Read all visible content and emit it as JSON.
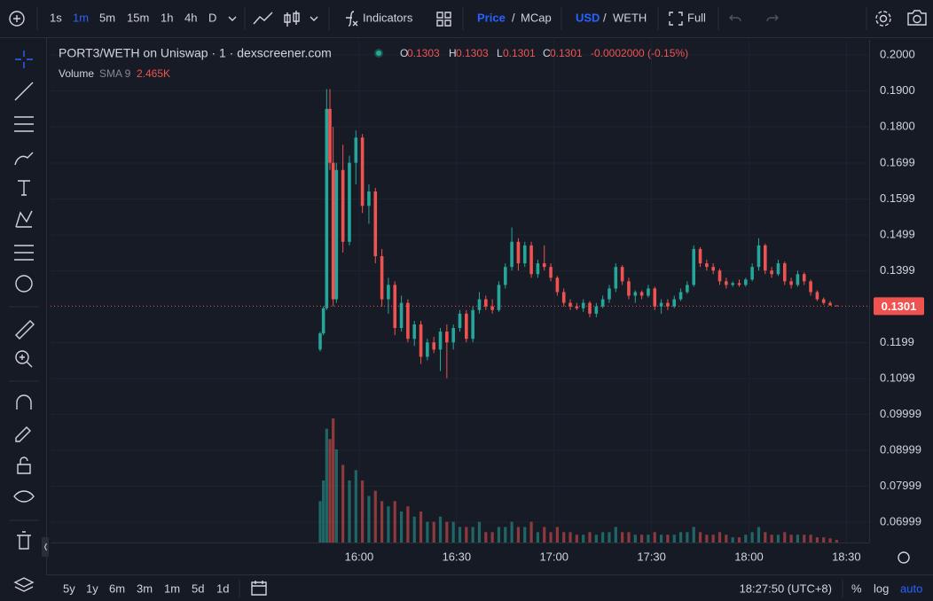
{
  "toolbar": {
    "intervals": [
      "1s",
      "1m",
      "5m",
      "15m",
      "1h",
      "4h",
      "D"
    ],
    "indicators": "Indicators",
    "price": "Price",
    "slash": "/",
    "mcap": "MCap",
    "usd": "USD",
    "weth": "WETH",
    "full": "Full"
  },
  "bottom_bar": {
    "ranges": [
      "5y",
      "1y",
      "6m",
      "3m",
      "1m",
      "5d",
      "1d"
    ],
    "clock": "18:27:50 (UTC+8)",
    "percent": "%",
    "log": "log",
    "auto": "auto"
  },
  "chart_data": {
    "type": "candlestick",
    "title": "PORT3/WETH on Uniswap · 1 · dexscreener.com",
    "ohlc_labels": [
      "O",
      "H",
      "L",
      "C"
    ],
    "change": "-0.0002000 (-0.15%)",
    "volume_label": "Volume",
    "volume_sma": "SMA 9",
    "volume_sma_value": "2.465K",
    "up_color": "#26a69a",
    "down_color": "#ef5350",
    "grid": true,
    "ylim": [
      0.0643,
      0.2042
    ],
    "yticks": [
      {
        "value": 0.2,
        "label": "0.2000"
      },
      {
        "value": 0.19,
        "label": "0.1900"
      },
      {
        "value": 0.18,
        "label": "0.1800"
      },
      0.1699,
      0.1599,
      0.1499,
      0.1399,
      0.1199,
      0.1099,
      0.09999,
      0.08999,
      0.07999,
      0.06999
    ],
    "xlim": [
      "14:25",
      "18:37"
    ],
    "xticks": [
      "16:00",
      "16:30",
      "17:00",
      "17:30",
      "18:00",
      "18:30"
    ],
    "x": [
      "15:48",
      "15:49",
      "15:50",
      "15:51",
      "15:52",
      "15:53",
      "15:55",
      "15:57",
      "15:59",
      "16:01",
      "16:03",
      "16:05",
      "16:07",
      "16:09",
      "16:11",
      "16:13",
      "16:15",
      "16:17",
      "16:19",
      "16:21",
      "16:23",
      "16:25",
      "16:27",
      "16:29",
      "16:31",
      "16:33",
      "16:35",
      "16:37",
      "16:39",
      "16:41",
      "16:43",
      "16:45",
      "16:47",
      "16:49",
      "16:51",
      "16:53",
      "16:55",
      "16:57",
      "16:59",
      "17:01",
      "17:03",
      "17:05",
      "17:07",
      "17:09",
      "17:11",
      "17:13",
      "17:15",
      "17:17",
      "17:19",
      "17:21",
      "17:23",
      "17:25",
      "17:27",
      "17:29",
      "17:31",
      "17:33",
      "17:35",
      "17:37",
      "17:39",
      "17:41",
      "17:43",
      "17:45",
      "17:47",
      "17:49",
      "17:51",
      "17:53",
      "17:55",
      "17:57",
      "17:59",
      "18:01",
      "18:03",
      "18:05",
      "18:07",
      "18:09",
      "18:11",
      "18:13",
      "18:15",
      "18:17",
      "18:19",
      "18:21",
      "18:23",
      "18:25",
      "18:27"
    ],
    "open": [
      0.118,
      0.1225,
      0.1295,
      0.185,
      0.17,
      0.132,
      0.168,
      0.148,
      0.17,
      0.177,
      0.158,
      0.162,
      0.144,
      0.132,
      0.136,
      0.124,
      0.131,
      0.121,
      0.125,
      0.116,
      0.12,
      0.118,
      0.123,
      0.12,
      0.124,
      0.128,
      0.121,
      0.129,
      0.132,
      0.13,
      0.129,
      0.136,
      0.141,
      0.148,
      0.142,
      0.147,
      0.139,
      0.142,
      0.141,
      0.138,
      0.134,
      0.131,
      0.13,
      0.1295,
      0.131,
      0.128,
      0.13,
      0.132,
      0.135,
      0.141,
      0.137,
      0.133,
      0.134,
      0.133,
      0.135,
      0.13,
      0.131,
      0.13,
      0.132,
      0.134,
      0.136,
      0.146,
      0.142,
      0.141,
      0.14,
      0.137,
      0.136,
      0.1365,
      0.136,
      0.1375,
      0.141,
      0.147,
      0.14,
      0.139,
      0.142,
      0.137,
      0.136,
      0.139,
      0.137,
      0.134,
      0.132,
      0.131,
      0.1303
    ],
    "high": [
      0.123,
      0.13,
      0.1905,
      0.1905,
      0.18,
      0.17,
      0.175,
      0.172,
      0.179,
      0.178,
      0.164,
      0.163,
      0.146,
      0.138,
      0.137,
      0.133,
      0.132,
      0.126,
      0.126,
      0.121,
      0.1215,
      0.124,
      0.125,
      0.125,
      0.129,
      0.129,
      0.13,
      0.134,
      0.133,
      0.132,
      0.137,
      0.142,
      0.152,
      0.149,
      0.148,
      0.148,
      0.143,
      0.147,
      0.142,
      0.1385,
      0.135,
      0.132,
      0.131,
      0.132,
      0.1315,
      0.131,
      0.133,
      0.136,
      0.142,
      0.1415,
      0.138,
      0.1345,
      0.1345,
      0.136,
      0.1355,
      0.132,
      0.132,
      0.133,
      0.135,
      0.137,
      0.147,
      0.1465,
      0.143,
      0.142,
      0.1405,
      0.138,
      0.137,
      0.1375,
      0.138,
      0.142,
      0.149,
      0.1475,
      0.141,
      0.143,
      0.1425,
      0.138,
      0.14,
      0.1395,
      0.1375,
      0.1345,
      0.1325,
      0.1315,
      0.1303
    ],
    "low": [
      0.1175,
      0.122,
      0.129,
      0.168,
      0.13,
      0.131,
      0.145,
      0.147,
      0.164,
      0.156,
      0.153,
      0.142,
      0.13,
      0.128,
      0.122,
      0.123,
      0.12,
      0.119,
      0.114,
      0.115,
      0.117,
      0.112,
      0.11,
      0.118,
      0.123,
      0.12,
      0.12,
      0.128,
      0.129,
      0.128,
      0.1285,
      0.135,
      0.14,
      0.14,
      0.141,
      0.138,
      0.138,
      0.14,
      0.137,
      0.133,
      0.13,
      0.129,
      0.129,
      0.1285,
      0.127,
      0.127,
      0.1295,
      0.131,
      0.134,
      0.136,
      0.132,
      0.131,
      0.132,
      0.1325,
      0.129,
      0.128,
      0.129,
      0.1295,
      0.1315,
      0.1335,
      0.1355,
      0.141,
      0.14,
      0.139,
      0.136,
      0.135,
      0.1355,
      0.1355,
      0.1355,
      0.137,
      0.14,
      0.139,
      0.138,
      0.1385,
      0.136,
      0.135,
      0.1355,
      0.136,
      0.133,
      0.1315,
      0.1305,
      0.1302,
      0.1301
    ],
    "close": [
      0.1225,
      0.1295,
      0.185,
      0.17,
      0.132,
      0.168,
      0.148,
      0.17,
      0.177,
      0.158,
      0.162,
      0.144,
      0.132,
      0.136,
      0.124,
      0.131,
      0.121,
      0.125,
      0.116,
      0.12,
      0.118,
      0.123,
      0.12,
      0.124,
      0.128,
      0.121,
      0.129,
      0.132,
      0.13,
      0.129,
      0.136,
      0.141,
      0.148,
      0.142,
      0.147,
      0.139,
      0.142,
      0.141,
      0.138,
      0.134,
      0.131,
      0.13,
      0.1295,
      0.131,
      0.128,
      0.13,
      0.132,
      0.135,
      0.141,
      0.137,
      0.133,
      0.134,
      0.133,
      0.135,
      0.13,
      0.131,
      0.13,
      0.132,
      0.134,
      0.136,
      0.146,
      0.142,
      0.141,
      0.14,
      0.137,
      0.136,
      0.1365,
      0.136,
      0.1375,
      0.141,
      0.147,
      0.14,
      0.139,
      0.142,
      0.137,
      0.136,
      0.139,
      0.137,
      0.134,
      0.132,
      0.131,
      0.1303,
      0.1301
    ],
    "volume": [
      8,
      12,
      22,
      20,
      24,
      18,
      15,
      12,
      14,
      12,
      9,
      10,
      8,
      7,
      8,
      6,
      7,
      5,
      6,
      4,
      4,
      5,
      4,
      4,
      3,
      3,
      3,
      4,
      2,
      2,
      3,
      3,
      4,
      3,
      3,
      4,
      2,
      3,
      2,
      3,
      2,
      2,
      1.5,
      1.5,
      2,
      1.5,
      2,
      2,
      3,
      2,
      2,
      1.5,
      1.5,
      1.5,
      2,
      1.5,
      1.5,
      1.5,
      2,
      2,
      3,
      2,
      1.5,
      1.5,
      2,
      1.5,
      1,
      1,
      1.5,
      2,
      3,
      2,
      1.5,
      1.5,
      2,
      1.5,
      1.5,
      1.5,
      1.5,
      1,
      1,
      0.8,
      0.5
    ]
  }
}
